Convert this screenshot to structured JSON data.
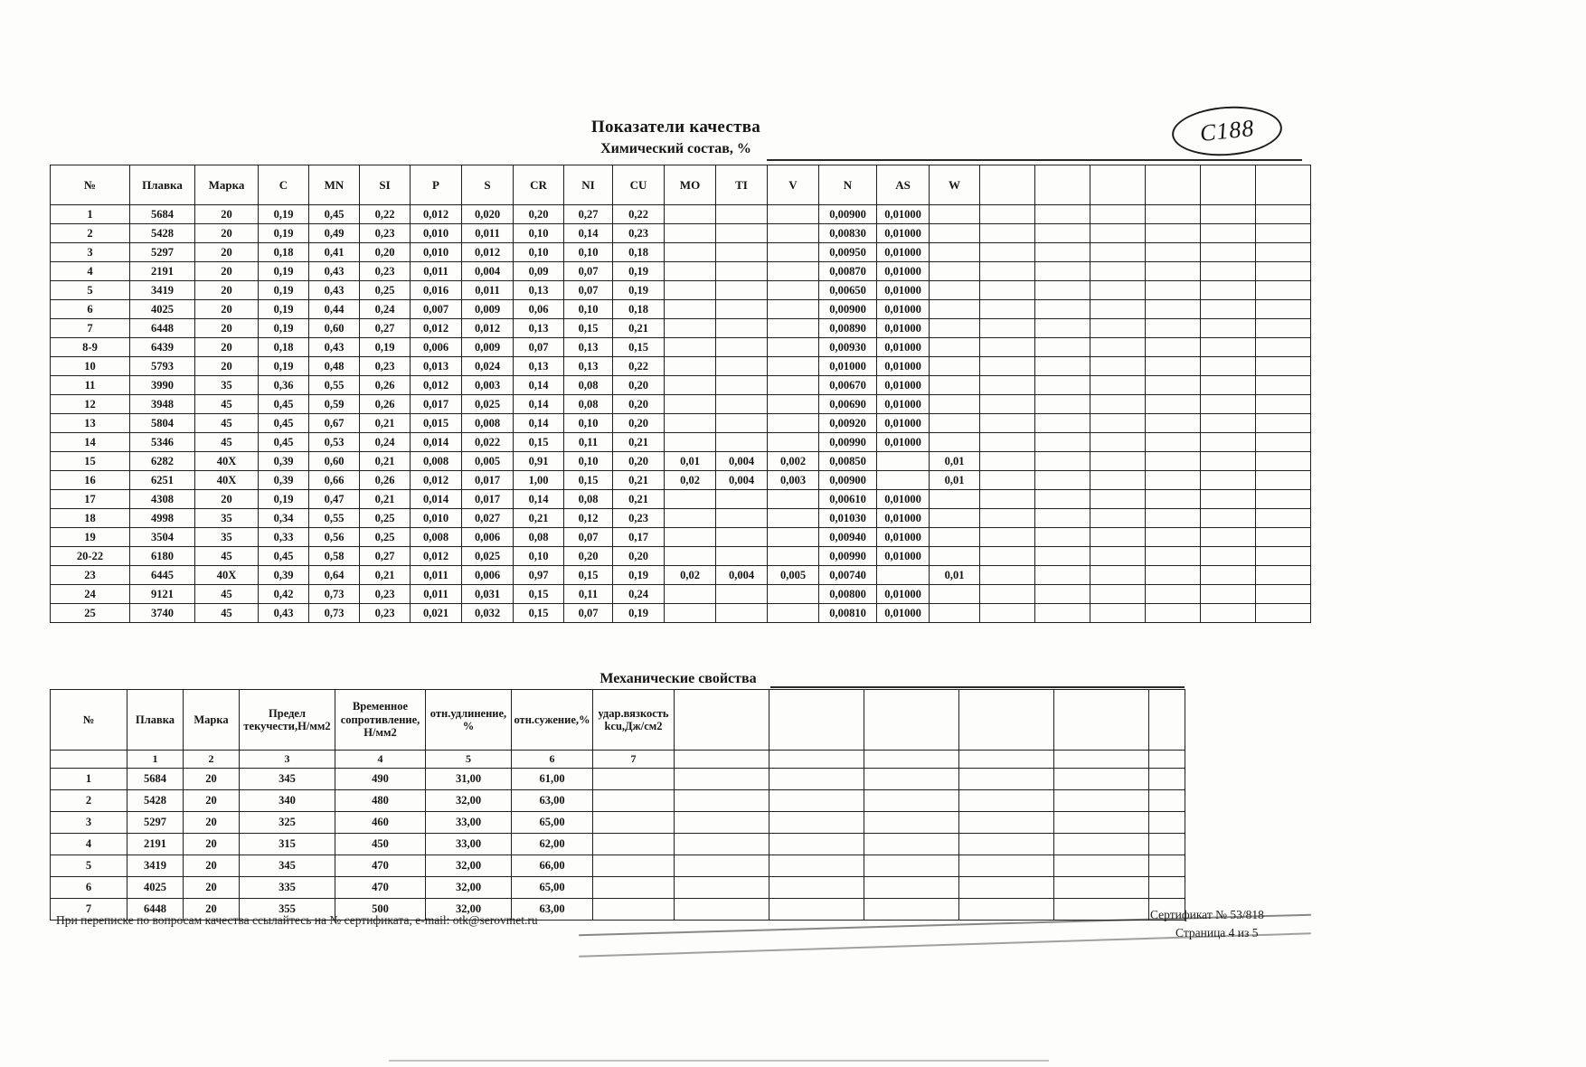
{
  "page": {
    "title": "Показатели качества",
    "chem_subtitle": "Химический состав, %",
    "mech_title": "Механические свойства",
    "stamp_text": "C188",
    "footer_left": "При переписке по вопросам качества ссылайтесь на № сертификата, e-mail: otk@serovmet.ru",
    "footer_cert": "Сертификат № 53/818",
    "footer_page": "Страница 4 из 5"
  },
  "chem_table": {
    "headers": [
      "№",
      "Плавка",
      "Марка",
      "C",
      "MN",
      "SI",
      "P",
      "S",
      "CR",
      "NI",
      "CU",
      "MO",
      "TI",
      "V",
      "N",
      "AS",
      "W"
    ],
    "rows": [
      [
        "1",
        "5684",
        "20",
        "0,19",
        "0,45",
        "0,22",
        "0,012",
        "0,020",
        "0,20",
        "0,27",
        "0,22",
        "",
        "",
        "",
        "0,00900",
        "0,01000",
        ""
      ],
      [
        "2",
        "5428",
        "20",
        "0,19",
        "0,49",
        "0,23",
        "0,010",
        "0,011",
        "0,10",
        "0,14",
        "0,23",
        "",
        "",
        "",
        "0,00830",
        "0,01000",
        ""
      ],
      [
        "3",
        "5297",
        "20",
        "0,18",
        "0,41",
        "0,20",
        "0,010",
        "0,012",
        "0,10",
        "0,10",
        "0,18",
        "",
        "",
        "",
        "0,00950",
        "0,01000",
        ""
      ],
      [
        "4",
        "2191",
        "20",
        "0,19",
        "0,43",
        "0,23",
        "0,011",
        "0,004",
        "0,09",
        "0,07",
        "0,19",
        "",
        "",
        "",
        "0,00870",
        "0,01000",
        ""
      ],
      [
        "5",
        "3419",
        "20",
        "0,19",
        "0,43",
        "0,25",
        "0,016",
        "0,011",
        "0,13",
        "0,07",
        "0,19",
        "",
        "",
        "",
        "0,00650",
        "0,01000",
        ""
      ],
      [
        "6",
        "4025",
        "20",
        "0,19",
        "0,44",
        "0,24",
        "0,007",
        "0,009",
        "0,06",
        "0,10",
        "0,18",
        "",
        "",
        "",
        "0,00900",
        "0,01000",
        ""
      ],
      [
        "7",
        "6448",
        "20",
        "0,19",
        "0,60",
        "0,27",
        "0,012",
        "0,012",
        "0,13",
        "0,15",
        "0,21",
        "",
        "",
        "",
        "0,00890",
        "0,01000",
        ""
      ],
      [
        "8-9",
        "6439",
        "20",
        "0,18",
        "0,43",
        "0,19",
        "0,006",
        "0,009",
        "0,07",
        "0,13",
        "0,15",
        "",
        "",
        "",
        "0,00930",
        "0,01000",
        ""
      ],
      [
        "10",
        "5793",
        "20",
        "0,19",
        "0,48",
        "0,23",
        "0,013",
        "0,024",
        "0,13",
        "0,13",
        "0,22",
        "",
        "",
        "",
        "0,01000",
        "0,01000",
        ""
      ],
      [
        "11",
        "3990",
        "35",
        "0,36",
        "0,55",
        "0,26",
        "0,012",
        "0,003",
        "0,14",
        "0,08",
        "0,20",
        "",
        "",
        "",
        "0,00670",
        "0,01000",
        ""
      ],
      [
        "12",
        "3948",
        "45",
        "0,45",
        "0,59",
        "0,26",
        "0,017",
        "0,025",
        "0,14",
        "0,08",
        "0,20",
        "",
        "",
        "",
        "0,00690",
        "0,01000",
        ""
      ],
      [
        "13",
        "5804",
        "45",
        "0,45",
        "0,67",
        "0,21",
        "0,015",
        "0,008",
        "0,14",
        "0,10",
        "0,20",
        "",
        "",
        "",
        "0,00920",
        "0,01000",
        ""
      ],
      [
        "14",
        "5346",
        "45",
        "0,45",
        "0,53",
        "0,24",
        "0,014",
        "0,022",
        "0,15",
        "0,11",
        "0,21",
        "",
        "",
        "",
        "0,00990",
        "0,01000",
        ""
      ],
      [
        "15",
        "6282",
        "40X",
        "0,39",
        "0,60",
        "0,21",
        "0,008",
        "0,005",
        "0,91",
        "0,10",
        "0,20",
        "0,01",
        "0,004",
        "0,002",
        "0,00850",
        "",
        "0,01"
      ],
      [
        "16",
        "6251",
        "40X",
        "0,39",
        "0,66",
        "0,26",
        "0,012",
        "0,017",
        "1,00",
        "0,15",
        "0,21",
        "0,02",
        "0,004",
        "0,003",
        "0,00900",
        "",
        "0,01"
      ],
      [
        "17",
        "4308",
        "20",
        "0,19",
        "0,47",
        "0,21",
        "0,014",
        "0,017",
        "0,14",
        "0,08",
        "0,21",
        "",
        "",
        "",
        "0,00610",
        "0,01000",
        ""
      ],
      [
        "18",
        "4998",
        "35",
        "0,34",
        "0,55",
        "0,25",
        "0,010",
        "0,027",
        "0,21",
        "0,12",
        "0,23",
        "",
        "",
        "",
        "0,01030",
        "0,01000",
        ""
      ],
      [
        "19",
        "3504",
        "35",
        "0,33",
        "0,56",
        "0,25",
        "0,008",
        "0,006",
        "0,08",
        "0,07",
        "0,17",
        "",
        "",
        "",
        "0,00940",
        "0,01000",
        ""
      ],
      [
        "20-22",
        "6180",
        "45",
        "0,45",
        "0,58",
        "0,27",
        "0,012",
        "0,025",
        "0,10",
        "0,20",
        "0,20",
        "",
        "",
        "",
        "0,00990",
        "0,01000",
        ""
      ],
      [
        "23",
        "6445",
        "40X",
        "0,39",
        "0,64",
        "0,21",
        "0,011",
        "0,006",
        "0,97",
        "0,15",
        "0,19",
        "0,02",
        "0,004",
        "0,005",
        "0,00740",
        "",
        "0,01"
      ],
      [
        "24",
        "9121",
        "45",
        "0,42",
        "0,73",
        "0,23",
        "0,011",
        "0,031",
        "0,15",
        "0,11",
        "0,24",
        "",
        "",
        "",
        "0,00800",
        "0,01000",
        ""
      ],
      [
        "25",
        "3740",
        "45",
        "0,43",
        "0,73",
        "0,23",
        "0,021",
        "0,032",
        "0,15",
        "0,07",
        "0,19",
        "",
        "",
        "",
        "0,00810",
        "0,01000",
        ""
      ]
    ]
  },
  "mech_table": {
    "headers": [
      "№",
      "Плавка",
      "Марка",
      "Предел текучести,Н/мм2",
      "Временное сопротивление, Н/мм2",
      "отн.удлинение, %",
      "отн.сужение,%",
      "удар.вязкость kcu,Дж/см2"
    ],
    "numbering": [
      "",
      "1",
      "2",
      "3",
      "4",
      "5",
      "6",
      "7"
    ],
    "rows": [
      [
        "1",
        "5684",
        "20",
        "345",
        "490",
        "31,00",
        "61,00"
      ],
      [
        "2",
        "5428",
        "20",
        "340",
        "480",
        "32,00",
        "63,00"
      ],
      [
        "3",
        "5297",
        "20",
        "325",
        "460",
        "33,00",
        "65,00"
      ],
      [
        "4",
        "2191",
        "20",
        "315",
        "450",
        "33,00",
        "62,00"
      ],
      [
        "5",
        "3419",
        "20",
        "345",
        "470",
        "32,00",
        "66,00"
      ],
      [
        "6",
        "4025",
        "20",
        "335",
        "470",
        "32,00",
        "65,00"
      ],
      [
        "7",
        "6448",
        "20",
        "355",
        "500",
        "32,00",
        "63,00"
      ]
    ]
  }
}
